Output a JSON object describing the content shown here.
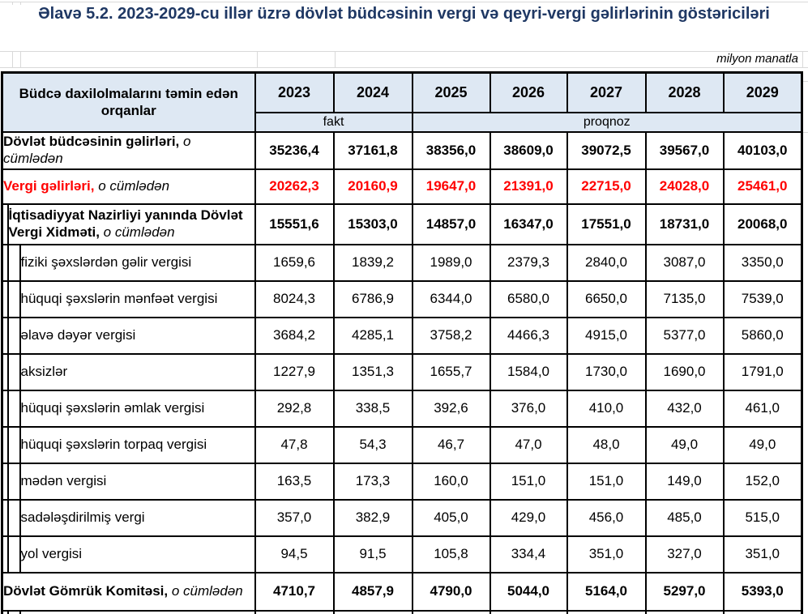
{
  "page": {
    "title": "Əlavə 5.2. 2023-2029-cu illər üzrə dövlət büdcəsinin vergi və qeyri-vergi gəlirlərinin göstəriciləri",
    "unit_note": "milyon manatla"
  },
  "colors": {
    "title_navy": "#1f3864",
    "header_bg": "#dee8f3",
    "highlight_red": "#ff0000",
    "border_black": "#000000"
  },
  "table": {
    "header": {
      "organ_label": "Büdcə daxilolmalarını təmin edən orqanlar",
      "years": [
        "2023",
        "2024",
        "2025",
        "2026",
        "2027",
        "2028",
        "2029"
      ],
      "fact_label": "fakt",
      "forecast_label": "proqnoz"
    },
    "rows": [
      {
        "label": "Dövlət büdcəsinin gəlirləri,",
        "label_suffix": "o cümlədən",
        "level": 0,
        "emphasis": "bold",
        "color": "#000000",
        "values": [
          "35236,4",
          "37161,8",
          "38356,0",
          "38609,0",
          "39072,5",
          "39567,0",
          "40103,0"
        ]
      },
      {
        "label": "Vergi gəlirləri,",
        "label_suffix": "o cümlədən",
        "level": 0,
        "emphasis": "bold",
        "color": "#ff0000",
        "values": [
          "20262,3",
          "20160,9",
          "19647,0",
          "21391,0",
          "22715,0",
          "24028,0",
          "25461,0"
        ]
      },
      {
        "label": "İqtisadiyyat Nazirliyi yanında Dövlət Vergi Xidməti,",
        "label_suffix": "o cümlədən",
        "level": 1,
        "emphasis": "bold",
        "color": "#000000",
        "values": [
          "15551,6",
          "15303,0",
          "14857,0",
          "16347,0",
          "17551,0",
          "18731,0",
          "20068,0"
        ]
      },
      {
        "label": "fiziki şəxslərdən gəlir vergisi",
        "level": 2,
        "emphasis": "normal",
        "color": "#000000",
        "values": [
          "1659,6",
          "1839,2",
          "1989,0",
          "2379,3",
          "2840,0",
          "3087,0",
          "3350,0"
        ]
      },
      {
        "label": "hüquqi şəxslərin mənfəət vergisi",
        "level": 2,
        "emphasis": "normal",
        "color": "#000000",
        "values": [
          "8024,3",
          "6786,9",
          "6344,0",
          "6580,0",
          "6650,0",
          "7135,0",
          "7539,0"
        ]
      },
      {
        "label": "əlavə dəyər vergisi",
        "level": 2,
        "emphasis": "normal",
        "color": "#000000",
        "values": [
          "3684,2",
          "4285,1",
          "3758,2",
          "4466,3",
          "4915,0",
          "5377,0",
          "5860,0"
        ]
      },
      {
        "label": "aksizlər",
        "level": 2,
        "emphasis": "normal",
        "color": "#000000",
        "values": [
          "1227,9",
          "1351,3",
          "1655,7",
          "1584,0",
          "1730,0",
          "1690,0",
          "1791,0"
        ]
      },
      {
        "label": "hüquqi şəxslərin əmlak vergisi",
        "level": 2,
        "emphasis": "normal",
        "color": "#000000",
        "values": [
          "292,8",
          "338,5",
          "392,6",
          "376,0",
          "410,0",
          "432,0",
          "461,0"
        ]
      },
      {
        "label": "hüquqi şəxslərin torpaq vergisi",
        "level": 2,
        "emphasis": "normal",
        "color": "#000000",
        "values": [
          "47,8",
          "54,3",
          "46,7",
          "47,0",
          "48,0",
          "49,0",
          "49,0"
        ]
      },
      {
        "label": "mədən vergisi",
        "level": 2,
        "emphasis": "normal",
        "color": "#000000",
        "values": [
          "163,5",
          "173,3",
          "160,0",
          "151,0",
          "151,0",
          "149,0",
          "152,0"
        ]
      },
      {
        "label": "sadələşdirilmiş  vergi",
        "level": 2,
        "emphasis": "normal",
        "color": "#000000",
        "values": [
          "357,0",
          "382,9",
          "405,0",
          "429,0",
          "456,0",
          "485,0",
          "515,0"
        ]
      },
      {
        "label": "yol vergisi",
        "level": 2,
        "emphasis": "normal",
        "color": "#000000",
        "values": [
          "94,5",
          "91,5",
          "105,8",
          "334,4",
          "351,0",
          "327,0",
          "351,0"
        ]
      },
      {
        "label": "Dövlət Gömrük Komitəsi,",
        "label_suffix": "o cümlədən",
        "level": 0,
        "emphasis": "bold",
        "color": "#000000",
        "values": [
          "4710,7",
          "4857,9",
          "4790,0",
          "5044,0",
          "5164,0",
          "5297,0",
          "5393,0"
        ]
      }
    ]
  }
}
